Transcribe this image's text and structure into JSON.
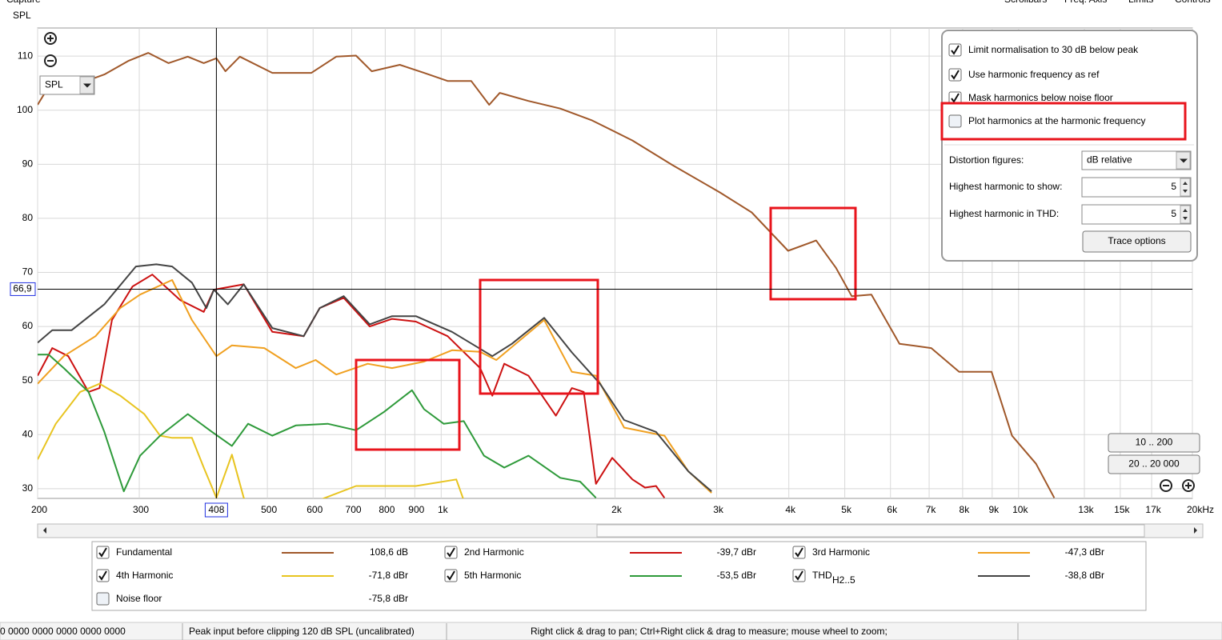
{
  "capture": "Capture",
  "menu": [
    "Scrollbars",
    "Freq. Axis",
    "Limits",
    "Controls"
  ],
  "zoom_dropdown": "SPL",
  "chart_data": {
    "type": "line",
    "y_label": "SPL",
    "xscale": "log",
    "xlim": [
      200,
      20000
    ],
    "ylim": [
      28.2,
      115.2
    ],
    "xticks": [
      200,
      300,
      500,
      600,
      700,
      800,
      900,
      {
        "value": 1000,
        "label": "1k"
      },
      {
        "value": 2000,
        "label": "2k"
      },
      {
        "value": 3000,
        "label": "3k"
      },
      {
        "value": 4000,
        "label": "4k"
      },
      {
        "value": 5000,
        "label": "5k"
      },
      {
        "value": 6000,
        "label": "6k"
      },
      {
        "value": 7000,
        "label": "7k"
      },
      {
        "value": 8000,
        "label": "8k"
      },
      {
        "value": 9000,
        "label": "9k"
      },
      {
        "value": 10000,
        "label": "10k"
      },
      {
        "value": 13000,
        "label": "13k",
        "muted": true
      },
      {
        "value": 15000,
        "label": "15k",
        "muted": true
      },
      {
        "value": 17000,
        "label": "17k",
        "muted": true
      },
      {
        "value": 20000,
        "label": "20kHz"
      }
    ],
    "yticks": [
      30,
      40,
      50,
      60,
      70,
      80,
      90,
      100,
      110
    ],
    "grid": true,
    "cursor": {
      "x": 408,
      "y": {
        "value": 66.9,
        "label": "66,9"
      }
    },
    "series": [
      {
        "name": "Fundamental",
        "color": "#a0582a",
        "level": "108,6 dB",
        "checked": true,
        "x": [
          200,
          208.6,
          237,
          261,
          287,
          311,
          337,
          364,
          388,
          408,
          423,
          448,
          510,
          596,
          658,
          712,
          758,
          848,
          934,
          1026,
          1127,
          1211,
          1263,
          1416,
          1608,
          1826,
          2144,
          2510,
          3038,
          3450,
          3988,
          4460,
          4830,
          5140,
          5560,
          6220,
          7060,
          7890,
          8980,
          9740,
          10720,
          11530
        ],
        "values": [
          101,
          104.2,
          105,
          106.6,
          109.1,
          110.6,
          108.7,
          109.9,
          108.7,
          109.6,
          107.2,
          109.9,
          106.9,
          106.9,
          109.9,
          110.1,
          107.2,
          108.4,
          106.9,
          105.4,
          105.4,
          101,
          103.2,
          101.7,
          100.3,
          98.1,
          94.4,
          89.9,
          84.8,
          81.1,
          74,
          75.9,
          70.8,
          65.6,
          65.9,
          56.8,
          56,
          51.6,
          51.6,
          39.8,
          34.6,
          28.3
        ]
      },
      {
        "name": "2nd Harmonic",
        "color": "#cc1111",
        "level": "-39,7 dBr",
        "checked": true,
        "x": [
          200,
          212,
          226,
          245,
          256,
          269,
          292,
          316,
          353,
          388,
          404,
          455,
          510,
          578,
          616,
          678,
          752,
          822,
          904,
          1026,
          1168,
          1226,
          1286,
          1416,
          1580,
          1684,
          1766,
          1854,
          1978,
          2144,
          2254,
          2356,
          2436
        ],
        "values": [
          50.9,
          56,
          54.5,
          47.9,
          48.6,
          61.2,
          67.4,
          69.6,
          64.9,
          62.7,
          66.8,
          67.8,
          59,
          58.2,
          63.4,
          65.3,
          60,
          61.4,
          60.9,
          58.2,
          52.3,
          47.2,
          53.1,
          50.9,
          43.5,
          48.6,
          47.9,
          30.9,
          35.7,
          31.7,
          30.2,
          30.5,
          28.3
        ]
      },
      {
        "name": "3rd Harmonic",
        "color": "#f0a020",
        "level": "-47,3 dBr",
        "checked": true,
        "x": [
          200,
          222,
          252,
          278,
          301,
          342,
          370,
          408,
          434,
          494,
          560,
          606,
          658,
          746,
          822,
          934,
          1044,
          1168,
          1246,
          1508,
          1684,
          1854,
          2074,
          2436,
          2680,
          2940
        ],
        "values": [
          49.4,
          54.5,
          58.2,
          63.4,
          65.9,
          68.6,
          61.2,
          54.5,
          56.5,
          56,
          52.3,
          53.8,
          51.1,
          53.1,
          52.3,
          53.5,
          55.6,
          55.3,
          53.8,
          61.2,
          51.6,
          50.9,
          41.3,
          39.8,
          33.2,
          29.2
        ]
      },
      {
        "name": "4th Harmonic",
        "color": "#e8c420",
        "level": "-71,8 dBr",
        "checked": true,
        "x": [
          200,
          215,
          237,
          256,
          278,
          306,
          326,
          342,
          370,
          388,
          408,
          434,
          455,
          494,
          712,
          904,
          1062,
          1127
        ],
        "values": [
          35.4,
          42,
          47.9,
          49.4,
          47.2,
          43.8,
          39.8,
          39.4,
          39.4,
          33.9,
          28.3,
          36.3,
          28.3,
          24,
          30.5,
          30.5,
          31.7,
          24
        ]
      },
      {
        "name": "5th Harmonic",
        "color": "#2e9a3a",
        "level": "-53,5 dBr",
        "checked": true,
        "x": [
          200,
          209,
          222,
          245,
          261,
          282,
          301,
          326,
          364,
          401,
          434,
          463,
          510,
          560,
          636,
          712,
          796,
          890,
          934,
          1010,
          1094,
          1186,
          1286,
          1416,
          1608,
          1740,
          1854
        ],
        "values": [
          54.8,
          54.8,
          52.3,
          47.9,
          40.5,
          29.5,
          36.1,
          39.8,
          43.8,
          40.5,
          37.9,
          42,
          39.8,
          41.7,
          42,
          40.8,
          44.2,
          48.2,
          44.7,
          42,
          42.5,
          36.1,
          33.9,
          36.1,
          32,
          31.3,
          28.3
        ]
      },
      {
        "name": "THD",
        "name_sub": "H2..5",
        "color": "#444444",
        "level": "-38,8 dBr",
        "checked": true,
        "x": [
          200,
          212,
          229,
          261,
          296,
          321,
          342,
          370,
          392,
          404,
          427,
          455,
          510,
          578,
          616,
          678,
          752,
          822,
          904,
          1044,
          1226,
          1326,
          1508,
          1684,
          1884,
          2074,
          2356,
          2680,
          2940
        ],
        "values": [
          57,
          59.3,
          59.3,
          64.1,
          71.1,
          71.5,
          71.1,
          68.1,
          63.4,
          66.8,
          64.1,
          67.8,
          59.7,
          58.2,
          63.4,
          65.6,
          60.4,
          61.9,
          61.9,
          59,
          54.5,
          56.8,
          61.6,
          55.2,
          49.4,
          42.7,
          40.5,
          33.2,
          29.5
        ]
      }
    ],
    "noise_floor": {
      "name": "Noise floor",
      "level": "-75,8 dBr",
      "checked": false
    }
  },
  "options": {
    "checkboxes": [
      {
        "label": "Limit normalisation to 30 dB below peak",
        "checked": true
      },
      {
        "label": "Use harmonic frequency as ref",
        "checked": true
      },
      {
        "label": "Mask harmonics below noise floor",
        "checked": true
      },
      {
        "label": "Plot harmonics at the harmonic frequency",
        "checked": false
      }
    ],
    "distortion_figures": {
      "label": "Distortion figures:",
      "value": "dB relative"
    },
    "highest_show": {
      "label": "Highest harmonic to show:",
      "value": 5
    },
    "highest_thd": {
      "label": "Highest harmonic in THD:",
      "value": 5
    },
    "button": "Trace options"
  },
  "range_buttons": [
    "10 .. 200",
    "20 .. 20 000"
  ],
  "status": [
    "0 0000  0000 0000  0000 0000",
    "Peak input before clipping 120 dB SPL (uncalibrated)",
    "Right click & drag to pan; Ctrl+Right click & drag to measure; mouse wheel to zoom;"
  ]
}
